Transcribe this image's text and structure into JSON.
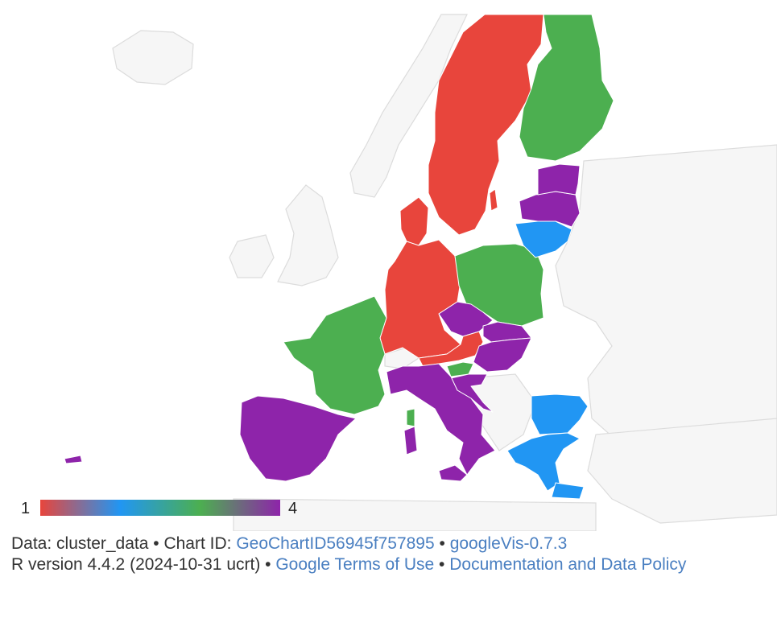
{
  "colors": {
    "cluster_1": "#e8453c",
    "cluster_2": "#2196f3",
    "cluster_3": "#4caf50",
    "cluster_4": "#8e24aa",
    "background_land": "#f3f3f3",
    "border": "#dddddd"
  },
  "colorbar": {
    "min_label": "1",
    "max_label": "4",
    "stops": [
      "#e8453c",
      "#2196f3",
      "#4caf50",
      "#8e24aa"
    ]
  },
  "clusters": {
    "Sweden": 1,
    "Denmark": 1,
    "Germany": 1,
    "Austria": 1,
    "Finland": 3,
    "Poland": 3,
    "France": 3,
    "Slovenia": 3,
    "Latvia": 4,
    "Estonia": 4,
    "Czechia": 4,
    "Slovakia": 4,
    "Hungary": 4,
    "Italy": 4,
    "Spain": 4,
    "Croatia": 4,
    "Lithuania": 2,
    "Bulgaria": 2,
    "Greece": 2
  },
  "footer": {
    "line1_prefix": "Data: cluster_data • Chart ID: ",
    "chart_id": "GeoChartID56945f757895",
    "sep1": " • ",
    "version": "googleVis-0.7.3",
    "line2_prefix": "R version 4.4.2 (2024-10-31 ucrt) • ",
    "terms": "Google Terms of Use",
    "sep2": " • ",
    "policy": "Documentation and Data Policy"
  }
}
